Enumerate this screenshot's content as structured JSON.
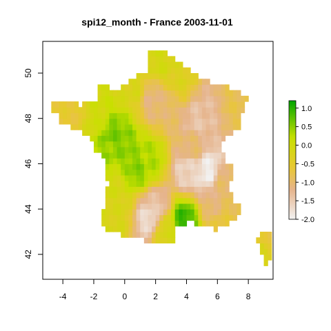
{
  "chart_data": {
    "type": "heatmap",
    "title": "spi12_month - France 2003-11-01",
    "xlabel": "",
    "ylabel": "",
    "xlim": [
      -5.3,
      9.6
    ],
    "ylim": [
      40.9,
      51.4
    ],
    "x_ticks": [
      -4,
      -2,
      0,
      2,
      4,
      6,
      8
    ],
    "x_tick_labels": [
      "-4",
      "-2",
      "0",
      "2",
      "4",
      "6",
      "8"
    ],
    "y_ticks": [
      42,
      44,
      46,
      48,
      50
    ],
    "y_tick_labels": [
      "42",
      "44",
      "46",
      "48",
      "50"
    ],
    "grid": false,
    "cell_size_deg": 0.25,
    "colorbar": {
      "position": "right",
      "range": [
        -2.0,
        1.2
      ],
      "ticks": [
        1.0,
        0.5,
        0.0,
        -0.5,
        -1.0,
        -1.5,
        -2.0
      ],
      "tick_labels": [
        "1.0",
        "0.5",
        "0.0",
        "-0.5",
        "-1.0",
        "-1.5",
        "-2.0"
      ],
      "stops": [
        {
          "value": -2.0,
          "color": "#f2f2f2"
        },
        {
          "value": -1.2,
          "color": "#e6b48c"
        },
        {
          "value": -0.6,
          "color": "#e8c832"
        },
        {
          "value": 0.2,
          "color": "#c8e000"
        },
        {
          "value": 1.2,
          "color": "#00a600"
        }
      ]
    },
    "regions": [
      {
        "lat": 48.2,
        "lon": -3.3,
        "value": -0.6
      },
      {
        "lat": 48.0,
        "lon": -1.8,
        "value": 0.0
      },
      {
        "lat": 47.2,
        "lon": -0.8,
        "value": 0.6
      },
      {
        "lat": 47.0,
        "lon": -0.2,
        "value": 0.5
      },
      {
        "lat": 46.7,
        "lon": -1.1,
        "value": 0.4
      },
      {
        "lat": 45.8,
        "lon": 0.8,
        "value": 0.5
      },
      {
        "lat": 46.2,
        "lon": 1.6,
        "value": 0.3
      },
      {
        "lat": 45.0,
        "lon": -0.8,
        "value": -0.1
      },
      {
        "lat": 44.1,
        "lon": -0.6,
        "value": -0.2
      },
      {
        "lat": 43.4,
        "lon": -0.8,
        "value": -0.2
      },
      {
        "lat": 49.3,
        "lon": 0.5,
        "value": -0.2
      },
      {
        "lat": 50.5,
        "lon": 2.4,
        "value": -0.1
      },
      {
        "lat": 49.8,
        "lon": 3.5,
        "value": -0.3
      },
      {
        "lat": 48.8,
        "lon": 1.8,
        "value": -1.1
      },
      {
        "lat": 48.6,
        "lon": 2.6,
        "value": -1.0
      },
      {
        "lat": 47.9,
        "lon": 4.8,
        "value": -1.4
      },
      {
        "lat": 48.3,
        "lon": 5.6,
        "value": -1.3
      },
      {
        "lat": 48.6,
        "lon": 6.9,
        "value": -0.8
      },
      {
        "lat": 46.8,
        "lon": 4.4,
        "value": -1.0
      },
      {
        "lat": 45.7,
        "lon": 4.1,
        "value": -1.6
      },
      {
        "lat": 45.7,
        "lon": 5.4,
        "value": -1.9
      },
      {
        "lat": 45.2,
        "lon": 6.4,
        "value": -1.0
      },
      {
        "lat": 44.2,
        "lon": 5.9,
        "value": -1.1
      },
      {
        "lat": 44.1,
        "lon": 2.1,
        "value": -1.4
      },
      {
        "lat": 43.6,
        "lon": 1.6,
        "value": -1.7
      },
      {
        "lat": 43.5,
        "lon": 3.8,
        "value": 0.9
      },
      {
        "lat": 43.1,
        "lon": 2.6,
        "value": -0.2
      },
      {
        "lat": 43.6,
        "lon": 6.3,
        "value": -0.7
      },
      {
        "lat": 44.4,
        "lon": 7.2,
        "value": -0.8
      },
      {
        "lat": 42.6,
        "lon": 9.1,
        "value": -0.6
      },
      {
        "lat": 42.2,
        "lon": 8.8,
        "value": -0.2
      }
    ]
  }
}
